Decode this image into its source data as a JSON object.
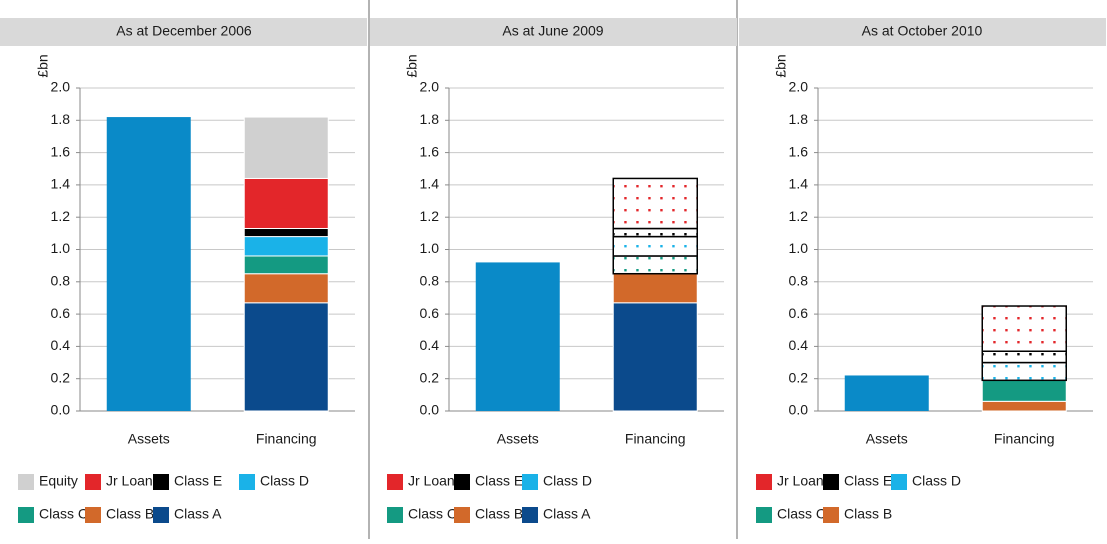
{
  "chart_data": [
    {
      "type": "stacked_bar",
      "title": "As at December 2006",
      "ylabel": "£bn",
      "categories": [
        "Assets",
        "Financing"
      ],
      "values": [
        1.82,
        null
      ],
      "color": "#0a8ac8",
      "ylim": [
        0,
        2
      ],
      "yticks": [
        {
          "value": 0,
          "label": "0.0"
        },
        0.2,
        0.4,
        0.6,
        0.8,
        {
          "value": 1,
          "label": "1.0"
        },
        1.2,
        1.4,
        1.6,
        1.8,
        {
          "value": 2,
          "label": "2.0"
        }
      ],
      "grid": true,
      "series": [
        {
          "name": "Equity",
          "color": "#d0d0d0",
          "values": [
            null,
            0.38
          ]
        },
        {
          "name": "Jr Loan",
          "color": "#e3262a",
          "values": [
            null,
            0.31
          ]
        },
        {
          "name": "Class E",
          "color": "#000000",
          "values": [
            null,
            0.05
          ]
        },
        {
          "name": "Class D",
          "color": "#1ab2e8",
          "values": [
            null,
            0.12
          ]
        },
        {
          "name": "Class C",
          "color": "#149a82",
          "values": [
            null,
            0.11
          ]
        },
        {
          "name": "Class B",
          "color": "#d2692a",
          "values": [
            null,
            0.18
          ]
        },
        {
          "name": "Class A",
          "color": "#0b4a8c",
          "values": [
            null,
            0.67
          ]
        }
      ]
    },
    {
      "type": "stacked_bar",
      "title": "As at June 2009",
      "ylabel": "£bn",
      "categories": [
        "Assets",
        "Financing"
      ],
      "values": [
        0.92,
        null
      ],
      "color": "#0a8ac8",
      "ylim": [
        0,
        2
      ],
      "yticks": [
        {
          "value": 0,
          "label": "0.0"
        },
        0.2,
        0.4,
        0.6,
        0.8,
        {
          "value": 1,
          "label": "1.0"
        },
        1.2,
        1.4,
        1.6,
        1.8,
        {
          "value": 2,
          "label": "2.0"
        }
      ],
      "grid": true,
      "series": [
        {
          "name": "Jr Loan",
          "color": "#e3262a",
          "pattern": "dots",
          "values": [
            null,
            0.31
          ]
        },
        {
          "name": "Class E",
          "color": "#000000",
          "pattern": "dots",
          "values": [
            null,
            0.05
          ]
        },
        {
          "name": "Class D",
          "color": "#1ab2e8",
          "pattern": "dots",
          "values": [
            null,
            0.12
          ]
        },
        {
          "name": "Class C",
          "color": "#149a82",
          "pattern": "dots",
          "values": [
            null,
            0.11
          ]
        },
        {
          "name": "Class B",
          "color": "#d2692a",
          "values": [
            null,
            0.18
          ]
        },
        {
          "name": "Class A",
          "color": "#0b4a8c",
          "values": [
            null,
            0.67
          ]
        }
      ]
    },
    {
      "type": "stacked_bar",
      "title": "As at October 2010",
      "ylabel": "£bn",
      "categories": [
        "Assets",
        "Financing"
      ],
      "values": [
        0.22,
        null
      ],
      "color": "#0a8ac8",
      "ylim": [
        0,
        2
      ],
      "yticks": [
        {
          "value": 0,
          "label": "0.0"
        },
        0.2,
        0.4,
        0.6,
        0.8,
        {
          "value": 1,
          "label": "1.0"
        },
        1.2,
        1.4,
        1.6,
        1.8,
        {
          "value": 2,
          "label": "2.0"
        }
      ],
      "grid": true,
      "series": [
        {
          "name": "Jr Loan",
          "color": "#e3262a",
          "pattern": "dots",
          "values": [
            null,
            0.28
          ]
        },
        {
          "name": "Class E",
          "color": "#000000",
          "pattern": "dots",
          "values": [
            null,
            0.07
          ]
        },
        {
          "name": "Class D",
          "color": "#1ab2e8",
          "pattern": "dots",
          "values": [
            null,
            0.11
          ]
        },
        {
          "name": "Class C",
          "color": "#149a82",
          "values": [
            null,
            0.13
          ]
        },
        {
          "name": "Class B",
          "color": "#d2692a",
          "values": [
            null,
            0.06
          ]
        }
      ]
    }
  ]
}
